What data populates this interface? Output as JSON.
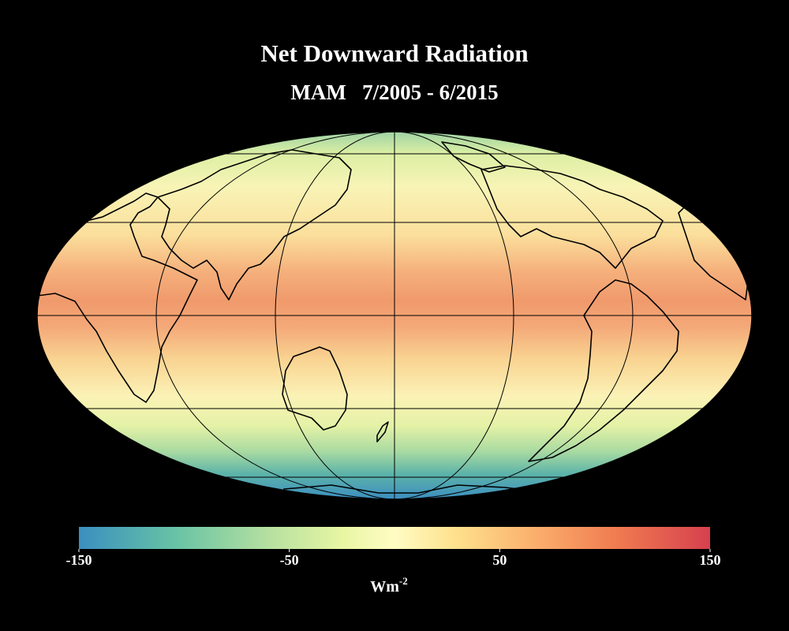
{
  "title": "Net Downward Radiation",
  "subtitle": "MAM   7/2005 - 6/2015",
  "colorbar": {
    "range": [
      -150,
      150
    ],
    "ticks": [
      -150,
      -50,
      50,
      150
    ],
    "unit": "Wm",
    "unit_exponent": "-2"
  }
}
